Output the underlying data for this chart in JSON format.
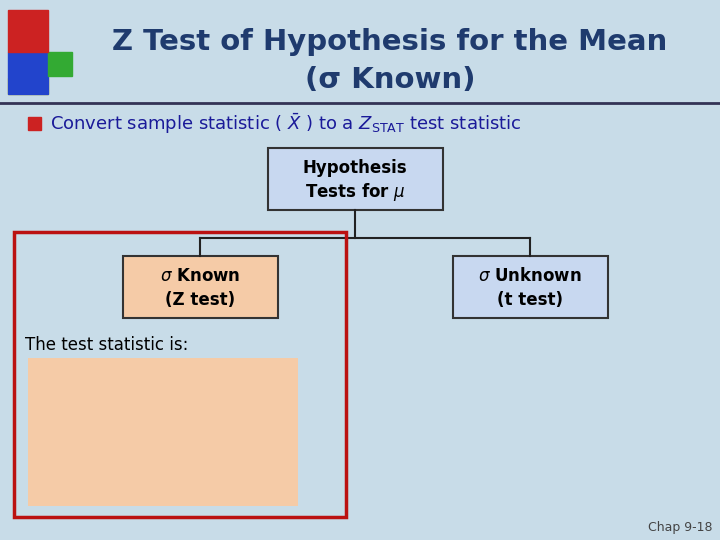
{
  "title_line1": "Z Test of Hypothesis for the Mean",
  "title_line2": "(σ Known)",
  "title_color": "#1F3B6E",
  "bg_color": "#C8DCE8",
  "bullet_color": "#1a1a99",
  "box_top_bg": "#C8D8F0",
  "box_top_border": "#333333",
  "box_left_bg": "#F5CBA7",
  "box_left_border": "#333333",
  "box_right_bg": "#C8D8F0",
  "box_right_border": "#333333",
  "red_rect_color": "#BB1111",
  "formula_bg": "#F5CBA7",
  "chap_text": "Chap 9-18",
  "line_color": "#222222",
  "separator_color": "#333355"
}
